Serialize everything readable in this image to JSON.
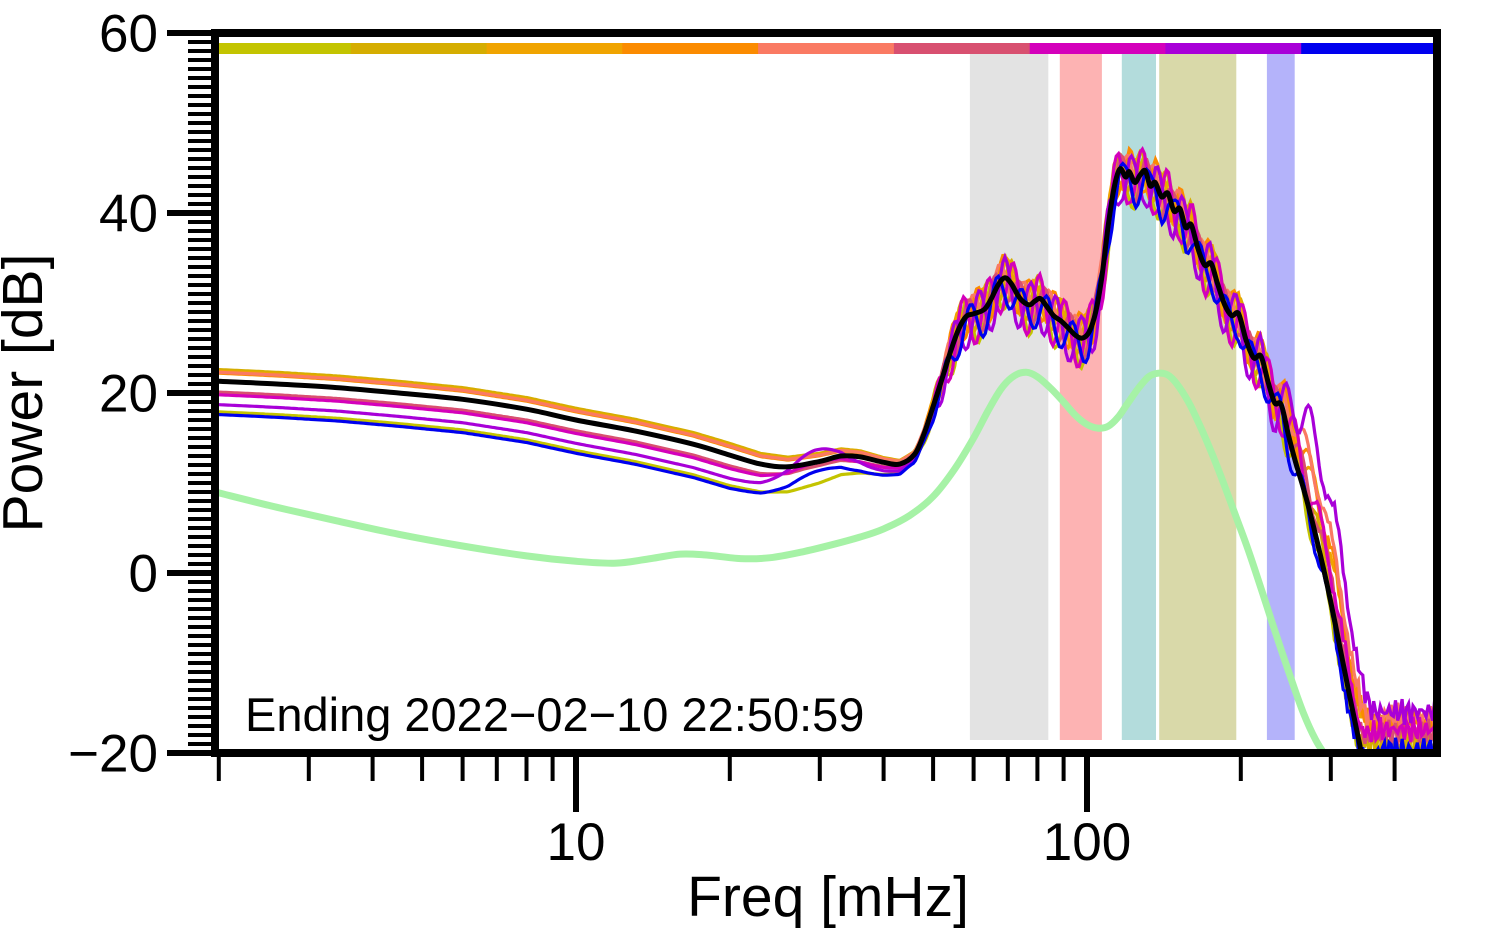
{
  "figure": {
    "kind": "power-spectrum-plot",
    "xlabel": "Freq [mHz]",
    "ylabel": "Power [dB]",
    "annotation": "Ending 2022−02−10 22:50:59"
  },
  "chart_data": {
    "type": "line",
    "xscale": "log",
    "yscale": "linear",
    "title": "",
    "xlabel": "Freq [mHz]",
    "ylabel": "Power [dB]",
    "annotation": "Ending 2022−02−10 22:50:59",
    "xlim": [
      1.966,
      484.2
    ],
    "ylim": [
      -20,
      60
    ],
    "x_major_ticks": [
      10,
      100
    ],
    "x_minor_ticks": [
      2,
      3,
      4,
      5,
      6,
      7,
      8,
      9,
      20,
      30,
      40,
      50,
      60,
      70,
      80,
      90,
      200,
      300,
      400
    ],
    "y_major_ticks": [
      60,
      40,
      20,
      0,
      -20
    ],
    "y_minor_step_db": 1,
    "grid": false,
    "legend": "none",
    "segment_bar": {
      "description": "horizontal color bar across plot top, 9 equal segments, one per time-segment PSD trace",
      "colors": [
        "#c3c400",
        "#d5ad00",
        "#f0a400",
        "#fb8b00",
        "#fa7a63",
        "#d85070",
        "#d400bb",
        "#a800d8",
        "#0000ee"
      ]
    },
    "bands": [
      {
        "name": "band-gray",
        "color": "#e3e3e3",
        "f_range_mhz": [
          59.0,
          84.0
        ]
      },
      {
        "name": "band-pink",
        "color": "#fdb3b3",
        "f_range_mhz": [
          88.5,
          107.0
        ]
      },
      {
        "name": "band-teal",
        "color": "#b3dcdc",
        "f_range_mhz": [
          117.0,
          136.5
        ]
      },
      {
        "name": "band-khaki",
        "color": "#d9d9a9",
        "f_range_mhz": [
          138.5,
          196.0
        ]
      },
      {
        "name": "band-lavender",
        "color": "#b4b3fa",
        "f_range_mhz": [
          225.0,
          255.0
        ]
      }
    ],
    "mean_curve": {
      "name": "mean-psd",
      "color": "#000000",
      "width": 5,
      "points_f_db": [
        [
          2.0,
          21.3
        ],
        [
          2.6,
          21.0
        ],
        [
          3.4,
          20.6
        ],
        [
          4.5,
          20.0
        ],
        [
          6,
          19.3
        ],
        [
          8,
          18.2
        ],
        [
          10,
          17.0
        ],
        [
          13,
          15.8
        ],
        [
          17,
          14.3
        ],
        [
          20,
          13.1
        ],
        [
          23,
          12.1
        ],
        [
          26,
          11.8
        ],
        [
          30,
          12.4
        ],
        [
          33,
          13.0
        ],
        [
          36,
          12.9
        ],
        [
          40,
          12.3
        ],
        [
          43,
          12.1
        ],
        [
          46,
          13.2
        ],
        [
          48,
          15.5
        ],
        [
          50,
          18.5
        ],
        [
          52,
          21.5
        ],
        [
          54,
          24.5
        ],
        [
          56,
          27.0
        ],
        [
          58,
          28.5
        ],
        [
          60,
          28.8
        ],
        [
          63,
          29.3
        ],
        [
          65,
          30.5
        ],
        [
          67,
          32.0
        ],
        [
          69,
          32.8
        ],
        [
          71,
          32.2
        ],
        [
          74,
          30.5
        ],
        [
          77,
          29.8
        ],
        [
          79,
          30.2
        ],
        [
          81,
          30.5
        ],
        [
          83,
          29.8
        ],
        [
          86,
          28.6
        ],
        [
          89,
          28.0
        ],
        [
          92,
          27.2
        ],
        [
          95,
          26.4
        ],
        [
          98,
          26.1
        ],
        [
          101,
          26.8
        ],
        [
          104,
          29.0
        ],
        [
          107,
          33.0
        ],
        [
          110,
          38.5
        ],
        [
          113,
          42.8
        ],
        [
          116,
          44.9
        ],
        [
          119,
          44.0
        ],
        [
          121,
          44.6
        ],
        [
          124,
          43.4
        ],
        [
          127,
          44.2
        ],
        [
          130,
          44.7
        ],
        [
          133,
          43.0
        ],
        [
          136,
          43.4
        ],
        [
          140,
          41.8
        ],
        [
          144,
          42.2
        ],
        [
          148,
          40.2
        ],
        [
          152,
          40.5
        ],
        [
          156,
          38.4
        ],
        [
          160,
          38.7
        ],
        [
          165,
          36.0
        ],
        [
          170,
          34.2
        ],
        [
          175,
          34.4
        ],
        [
          180,
          32.2
        ],
        [
          186,
          29.8
        ],
        [
          192,
          28.6
        ],
        [
          198,
          28.8
        ],
        [
          205,
          25.8
        ],
        [
          212,
          23.9
        ],
        [
          219,
          24.1
        ],
        [
          226,
          21.3
        ],
        [
          233,
          18.9
        ],
        [
          240,
          18.7
        ],
        [
          248,
          15.3
        ],
        [
          256,
          12.3
        ],
        [
          264,
          9.8
        ],
        [
          273,
          6.8
        ],
        [
          283,
          3.2
        ],
        [
          293,
          -0.5
        ],
        [
          304,
          -4.8
        ],
        [
          315,
          -9.2
        ],
        [
          327,
          -13.8
        ],
        [
          340,
          -18.4
        ],
        [
          352,
          -22.5
        ],
        [
          365,
          -26.0
        ]
      ]
    },
    "noise_curve": {
      "name": "low-noise-model",
      "color": "#a6f2a6",
      "width": 7,
      "points_f_db": [
        [
          2.0,
          8.9
        ],
        [
          2.6,
          7.3
        ],
        [
          3.4,
          5.8
        ],
        [
          4.5,
          4.3
        ],
        [
          6,
          3.0
        ],
        [
          8,
          1.9
        ],
        [
          10,
          1.3
        ],
        [
          12,
          1.1
        ],
        [
          14,
          1.6
        ],
        [
          16,
          2.1
        ],
        [
          18,
          2.0
        ],
        [
          21,
          1.6
        ],
        [
          24,
          1.7
        ],
        [
          28,
          2.4
        ],
        [
          32,
          3.2
        ],
        [
          36,
          4.0
        ],
        [
          40,
          4.9
        ],
        [
          45,
          6.4
        ],
        [
          50,
          8.5
        ],
        [
          55,
          11.5
        ],
        [
          60,
          15.0
        ],
        [
          64,
          18.0
        ],
        [
          68,
          20.5
        ],
        [
          72,
          21.9
        ],
        [
          76,
          22.3
        ],
        [
          80,
          21.8
        ],
        [
          85,
          20.5
        ],
        [
          90,
          19.0
        ],
        [
          95,
          17.5
        ],
        [
          100,
          16.5
        ],
        [
          105,
          16.1
        ],
        [
          110,
          16.3
        ],
        [
          115,
          17.3
        ],
        [
          120,
          18.8
        ],
        [
          126,
          20.5
        ],
        [
          132,
          21.8
        ],
        [
          138,
          22.2
        ],
        [
          144,
          22.0
        ],
        [
          150,
          21.0
        ],
        [
          158,
          19.0
        ],
        [
          166,
          16.5
        ],
        [
          175,
          13.5
        ],
        [
          185,
          10.0
        ],
        [
          195,
          6.5
        ],
        [
          207,
          2.5
        ],
        [
          220,
          -2.0
        ],
        [
          235,
          -7.0
        ],
        [
          250,
          -11.5
        ],
        [
          265,
          -15.5
        ],
        [
          280,
          -18.5
        ],
        [
          295,
          -20.5
        ],
        [
          310,
          -22.0
        ]
      ]
    },
    "segment_curves": [
      {
        "name": "segment-1",
        "color": "#c3c400",
        "width": 3.2,
        "offset_db": -3.4,
        "tail_db": -19.2,
        "wiggle_amp": 2.6,
        "wiggle_phase": 0.0,
        "descent_shift": 0.0,
        "bump30_db": 0.0
      },
      {
        "name": "segment-2",
        "color": "#d5ad00",
        "width": 3.2,
        "offset_db": 1.3,
        "tail_db": -18.6,
        "wiggle_amp": 2.3,
        "wiggle_phase": 1.1,
        "descent_shift": 0.005,
        "bump30_db": 0.0
      },
      {
        "name": "segment-3",
        "color": "#f0a400",
        "width": 3.2,
        "offset_db": 1.1,
        "tail_db": -16.6,
        "wiggle_amp": 2.1,
        "wiggle_phase": 2.2,
        "descent_shift": 0.02,
        "bump30_db": 0.0
      },
      {
        "name": "segment-4",
        "color": "#fb8b00",
        "width": 3.2,
        "offset_db": 0.9,
        "tail_db": -16.2,
        "wiggle_amp": 2.5,
        "wiggle_phase": 3.3,
        "descent_shift": 0.022,
        "bump30_db": 0.0
      },
      {
        "name": "segment-5",
        "color": "#fa7a63",
        "width": 3.2,
        "offset_db": 1.0,
        "tail_db": -16.0,
        "wiggle_amp": 1.9,
        "wiggle_phase": 4.4,
        "descent_shift": 0.028,
        "bump30_db": 0.0
      },
      {
        "name": "segment-6",
        "color": "#d85070",
        "width": 3.2,
        "offset_db": -1.2,
        "tail_db": -17.8,
        "wiggle_amp": 2.1,
        "wiggle_phase": 5.5,
        "descent_shift": 0.012,
        "bump30_db": 0.4
      },
      {
        "name": "segment-7",
        "color": "#d400bb",
        "width": 3.2,
        "offset_db": -1.5,
        "tail_db": -17.4,
        "wiggle_amp": 3.1,
        "wiggle_phase": 0.7,
        "descent_shift": 0.015,
        "bump30_db": 1.0
      },
      {
        "name": "segment-8",
        "color": "#a800d8",
        "width": 3.2,
        "offset_db": -2.6,
        "tail_db": -15.4,
        "wiggle_amp": 3.0,
        "wiggle_phase": 2.9,
        "descent_shift": 0.05,
        "bump30_db": 3.2
      },
      {
        "name": "segment-9",
        "color": "#0000ee",
        "width": 3.2,
        "offset_db": -3.7,
        "tail_db": -19.6,
        "wiggle_amp": 2.1,
        "wiggle_phase": 5.0,
        "descent_shift": 0.0,
        "bump30_db": 1.6
      }
    ]
  }
}
